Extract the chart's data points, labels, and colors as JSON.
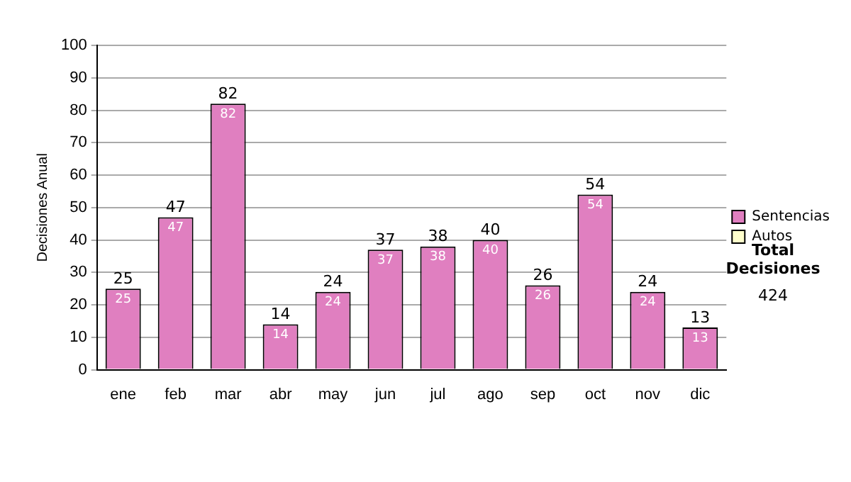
{
  "chart_data": {
    "type": "bar",
    "stacked": true,
    "ylabel": "Decisiones Anual",
    "categories": [
      "ene",
      "feb",
      "mar",
      "abr",
      "may",
      "jun",
      "jul",
      "ago",
      "sep",
      "oct",
      "nov",
      "dic"
    ],
    "series": [
      {
        "name": "Sentencias",
        "color": "#e07fc0",
        "values": [
          25,
          47,
          82,
          14,
          24,
          37,
          38,
          40,
          26,
          54,
          24,
          13
        ],
        "value_labels": [
          "25",
          "47",
          "82",
          "14",
          "24",
          "37",
          "38",
          "40",
          "26",
          "54",
          "24",
          "13"
        ]
      },
      {
        "name": "Autos",
        "color": "#ffffcc",
        "values": [
          0,
          0,
          0,
          0,
          0,
          0,
          0,
          0,
          0,
          0,
          0,
          0
        ]
      }
    ],
    "totals": [
      "25",
      "47",
      "82",
      "14",
      "24",
      "37",
      "38",
      "40",
      "26",
      "54",
      "24",
      "13"
    ],
    "ylim": [
      0,
      100
    ],
    "yticks": [
      0,
      10,
      20,
      30,
      40,
      50,
      60,
      70,
      80,
      90,
      100
    ],
    "grid": "y",
    "legend": "right",
    "annotations": [
      "Total Decisiones",
      "424"
    ]
  }
}
